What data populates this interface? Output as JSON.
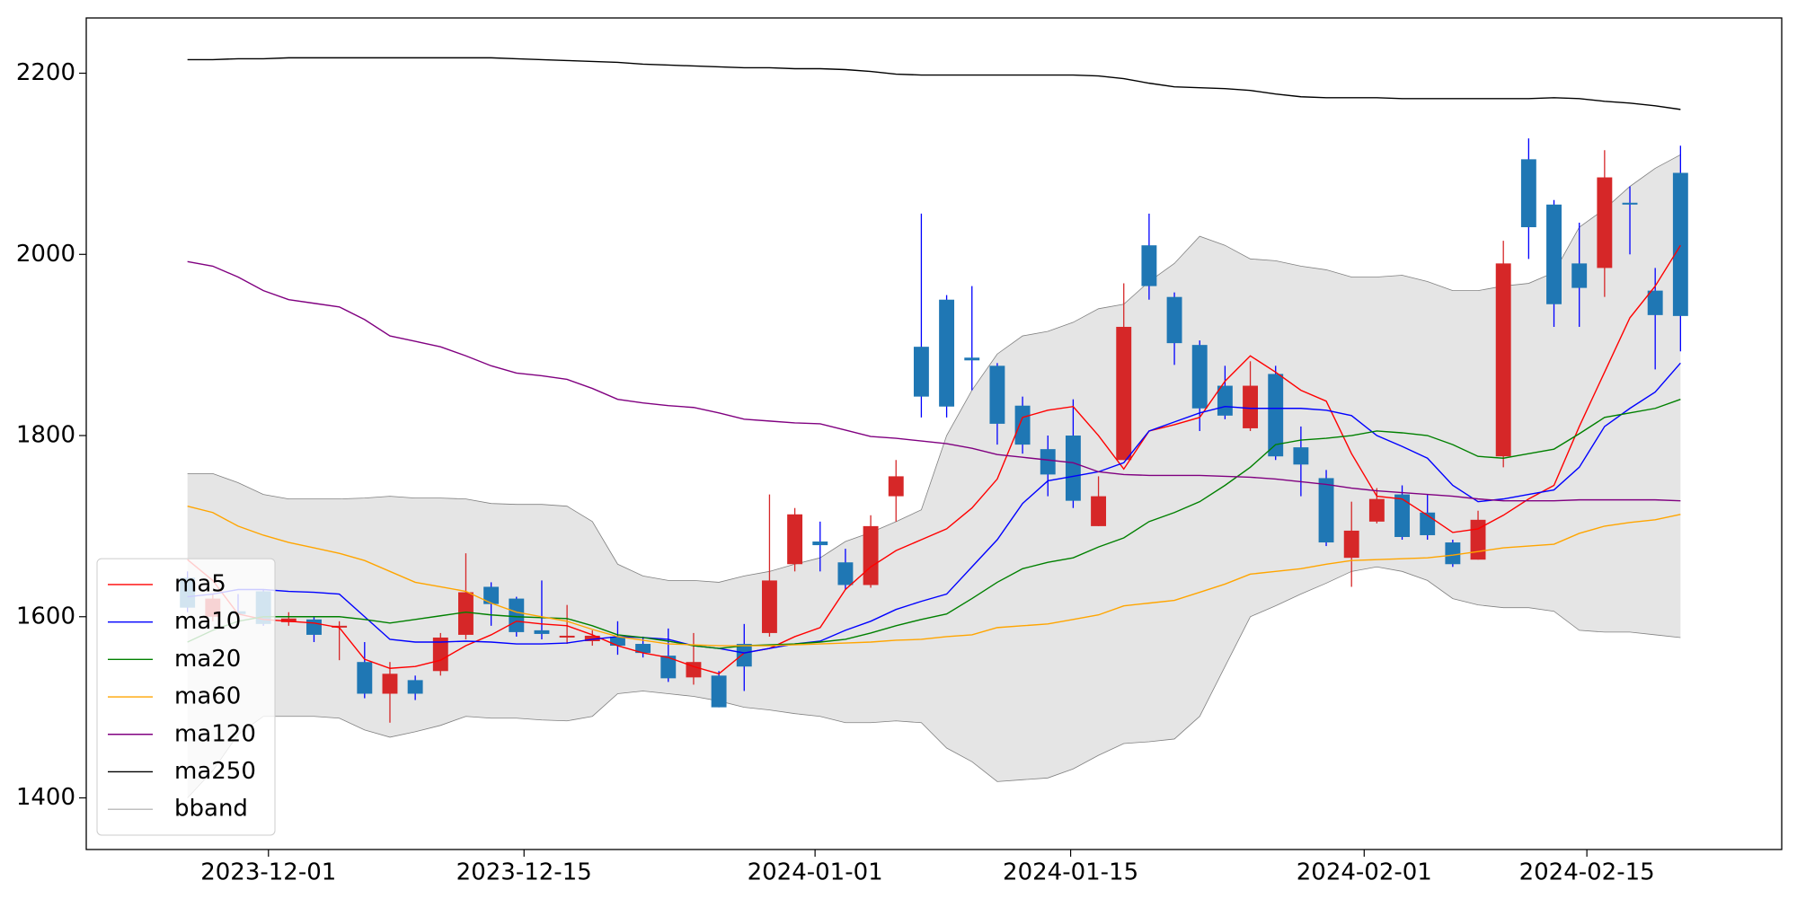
{
  "chart_data": {
    "type": "candlestick",
    "xlim": [
      -4,
      63
    ],
    "xticks": [
      {
        "value": 3.2,
        "label": "2023-12-01"
      },
      {
        "value": 13.3,
        "label": "2023-12-15"
      },
      {
        "value": 24.8,
        "label": "2024-01-01"
      },
      {
        "value": 34.9,
        "label": "2024-01-15"
      },
      {
        "value": 46.5,
        "label": "2024-02-01"
      },
      {
        "value": 55.3,
        "label": "2024-02-15"
      }
    ],
    "ylim": [
      1343,
      2261
    ],
    "yticks": [
      1400,
      1600,
      1800,
      2000,
      2200
    ],
    "up_color": "#d62728",
    "down_color": "#1f77b4",
    "legend": "lower left",
    "candles": {
      "open": [
        1643,
        1600,
        1606,
        1628,
        1594,
        1597,
        1588,
        1550,
        1515,
        1530,
        1540,
        1580,
        1633,
        1620,
        1585,
        1577,
        1573,
        1578,
        1570,
        1557,
        1533,
        1535,
        1570,
        1582,
        1658,
        1683,
        1660,
        1635,
        1733,
        1898,
        1950,
        1886,
        1877,
        1833,
        1785,
        1800,
        1700,
        1773,
        2010,
        1953,
        1900,
        1855,
        1808,
        1868,
        1787,
        1753,
        1665,
        1705,
        1735,
        1715,
        1682,
        1663,
        1777,
        2105,
        2055,
        1990,
        1985,
        2057,
        1960,
        2090
      ],
      "high": [
        1650,
        1625,
        1625,
        1630,
        1605,
        1600,
        1595,
        1572,
        1550,
        1535,
        1582,
        1670,
        1638,
        1622,
        1640,
        1613,
        1585,
        1595,
        1578,
        1587,
        1582,
        1540,
        1592,
        1735,
        1720,
        1705,
        1675,
        1712,
        1773,
        2045,
        1955,
        1965,
        1880,
        1843,
        1800,
        1840,
        1755,
        1968,
        2045,
        1958,
        1905,
        1877,
        1882,
        1877,
        1810,
        1762,
        1727,
        1742,
        1745,
        1735,
        1685,
        1717,
        2015,
        2128,
        2060,
        2035,
        2115,
        2075,
        1985,
        2120
      ],
      "low": [
        1605,
        1595,
        1590,
        1590,
        1590,
        1572,
        1552,
        1510,
        1483,
        1508,
        1535,
        1575,
        1590,
        1578,
        1575,
        1570,
        1568,
        1558,
        1555,
        1528,
        1525,
        1500,
        1518,
        1578,
        1650,
        1650,
        1630,
        1632,
        1705,
        1820,
        1820,
        1850,
        1790,
        1780,
        1733,
        1720,
        1700,
        1773,
        1950,
        1878,
        1805,
        1818,
        1805,
        1773,
        1733,
        1678,
        1633,
        1703,
        1685,
        1685,
        1655,
        1663,
        1765,
        1995,
        1920,
        1920,
        1953,
        2000,
        1873,
        1893
      ],
      "close": [
        1610,
        1620,
        1603,
        1592,
        1598,
        1580,
        1590,
        1515,
        1537,
        1515,
        1577,
        1627,
        1614,
        1583,
        1581,
        1579,
        1579,
        1568,
        1560,
        1532,
        1550,
        1500,
        1545,
        1640,
        1713,
        1679,
        1635,
        1700,
        1755,
        1843,
        1832,
        1883,
        1813,
        1790,
        1757,
        1728,
        1733,
        1920,
        1965,
        1902,
        1830,
        1822,
        1855,
        1777,
        1768,
        1682,
        1695,
        1730,
        1688,
        1690,
        1658,
        1707,
        1990,
        2030,
        1945,
        1963,
        2085,
        2055,
        1933,
        1932
      ]
    },
    "series": [
      {
        "name": "ma5",
        "color": "#ff0000",
        "values": [
          1663,
          1640,
          1603,
          1597,
          1595,
          1593,
          1588,
          1553,
          1543,
          1545,
          1552,
          1568,
          1580,
          1595,
          1592,
          1590,
          1580,
          1568,
          1560,
          1555,
          1545,
          1537,
          1560,
          1565,
          1578,
          1588,
          1630,
          1655,
          1673,
          1685,
          1697,
          1720,
          1752,
          1820,
          1828,
          1832,
          1800,
          1763,
          1805,
          1812,
          1820,
          1860,
          1888,
          1870,
          1850,
          1838,
          1780,
          1733,
          1730,
          1712,
          1693,
          1697,
          1712,
          1730,
          1745,
          1810,
          1870,
          1930,
          1965,
          2010
        ]
      },
      {
        "name": "ma10",
        "color": "#0000ff",
        "values": [
          1622,
          1625,
          1630,
          1630,
          1628,
          1627,
          1625,
          1600,
          1575,
          1572,
          1572,
          1573,
          1572,
          1570,
          1570,
          1571,
          1575,
          1578,
          1577,
          1575,
          1568,
          1565,
          1560,
          1565,
          1570,
          1573,
          1585,
          1595,
          1608,
          1617,
          1625,
          1655,
          1685,
          1725,
          1750,
          1755,
          1760,
          1770,
          1805,
          1815,
          1825,
          1832,
          1830,
          1830,
          1830,
          1828,
          1822,
          1800,
          1788,
          1775,
          1745,
          1727,
          1730,
          1735,
          1740,
          1765,
          1810,
          1830,
          1848,
          1880
        ]
      },
      {
        "name": "ma20",
        "color": "#008000",
        "values": [
          1572,
          1585,
          1595,
          1600,
          1600,
          1600,
          1600,
          1597,
          1593,
          1597,
          1601,
          1605,
          1602,
          1600,
          1599,
          1598,
          1590,
          1580,
          1577,
          1573,
          1568,
          1565,
          1568,
          1569,
          1570,
          1572,
          1575,
          1582,
          1590,
          1597,
          1603,
          1620,
          1638,
          1653,
          1660,
          1665,
          1677,
          1687,
          1705,
          1715,
          1727,
          1745,
          1765,
          1790,
          1795,
          1797,
          1800,
          1805,
          1803,
          1800,
          1790,
          1777,
          1775,
          1780,
          1785,
          1802,
          1820,
          1825,
          1830,
          1840
        ]
      },
      {
        "name": "ma60",
        "color": "#ffa500",
        "values": [
          1722,
          1715,
          1700,
          1690,
          1682,
          1676,
          1670,
          1662,
          1650,
          1638,
          1633,
          1628,
          1615,
          1605,
          1600,
          1595,
          1586,
          1578,
          1574,
          1570,
          1569,
          1568,
          1568,
          1568,
          1569,
          1570,
          1571,
          1572,
          1574,
          1575,
          1578,
          1580,
          1588,
          1590,
          1592,
          1597,
          1602,
          1612,
          1615,
          1618,
          1627,
          1636,
          1647,
          1650,
          1653,
          1658,
          1662,
          1663,
          1664,
          1665,
          1668,
          1672,
          1676,
          1678,
          1680,
          1692,
          1700,
          1704,
          1707,
          1713
        ]
      },
      {
        "name": "ma120",
        "color": "#800080",
        "values": [
          1992,
          1987,
          1975,
          1960,
          1950,
          1946,
          1942,
          1928,
          1910,
          1904,
          1898,
          1888,
          1877,
          1869,
          1866,
          1862,
          1852,
          1840,
          1836,
          1833,
          1831,
          1825,
          1818,
          1816,
          1814,
          1813,
          1806,
          1799,
          1797,
          1794,
          1791,
          1786,
          1779,
          1776,
          1773,
          1770,
          1760,
          1757,
          1756,
          1756,
          1756,
          1755,
          1754,
          1752,
          1749,
          1746,
          1742,
          1739,
          1737,
          1735,
          1733,
          1730,
          1728,
          1728,
          1728,
          1729,
          1729,
          1729,
          1729,
          1728
        ]
      },
      {
        "name": "ma250",
        "color": "#000000",
        "values": [
          2215,
          2215,
          2216,
          2216,
          2217,
          2217,
          2217,
          2217,
          2217,
          2217,
          2217,
          2217,
          2217,
          2216,
          2215,
          2214,
          2213,
          2212,
          2210,
          2209,
          2208,
          2207,
          2206,
          2206,
          2205,
          2205,
          2204,
          2202,
          2199,
          2198,
          2198,
          2198,
          2198,
          2198,
          2198,
          2198,
          2197,
          2194,
          2189,
          2185,
          2184,
          2183,
          2181,
          2177,
          2174,
          2173,
          2173,
          2173,
          2172,
          2172,
          2172,
          2172,
          2172,
          2172,
          2173,
          2172,
          2169,
          2167,
          2164,
          2160
        ]
      },
      {
        "name": "bband",
        "color": "#808080",
        "fill": "#e5e5e5",
        "upper": [
          1758,
          1758,
          1748,
          1735,
          1730,
          1730,
          1730,
          1731,
          1733,
          1731,
          1731,
          1730,
          1725,
          1724,
          1724,
          1722,
          1705,
          1658,
          1645,
          1640,
          1640,
          1638,
          1645,
          1650,
          1658,
          1665,
          1683,
          1693,
          1705,
          1718,
          1800,
          1850,
          1890,
          1910,
          1915,
          1925,
          1940,
          1945,
          1970,
          1990,
          2020,
          2010,
          1995,
          1993,
          1987,
          1983,
          1975,
          1975,
          1977,
          1970,
          1960,
          1960,
          1965,
          1968,
          1980,
          2030,
          2050,
          2075,
          2095,
          2110
        ],
        "lower": [
          1400,
          1430,
          1470,
          1490,
          1490,
          1490,
          1488,
          1475,
          1467,
          1473,
          1480,
          1490,
          1488,
          1488,
          1486,
          1485,
          1490,
          1515,
          1518,
          1515,
          1512,
          1507,
          1500,
          1497,
          1493,
          1490,
          1483,
          1483,
          1485,
          1483,
          1455,
          1440,
          1418,
          1420,
          1422,
          1432,
          1447,
          1460,
          1462,
          1465,
          1490,
          1545,
          1600,
          1612,
          1625,
          1637,
          1650,
          1655,
          1650,
          1640,
          1620,
          1613,
          1610,
          1610,
          1606,
          1585,
          1583,
          1583,
          1580,
          1577
        ]
      }
    ]
  }
}
